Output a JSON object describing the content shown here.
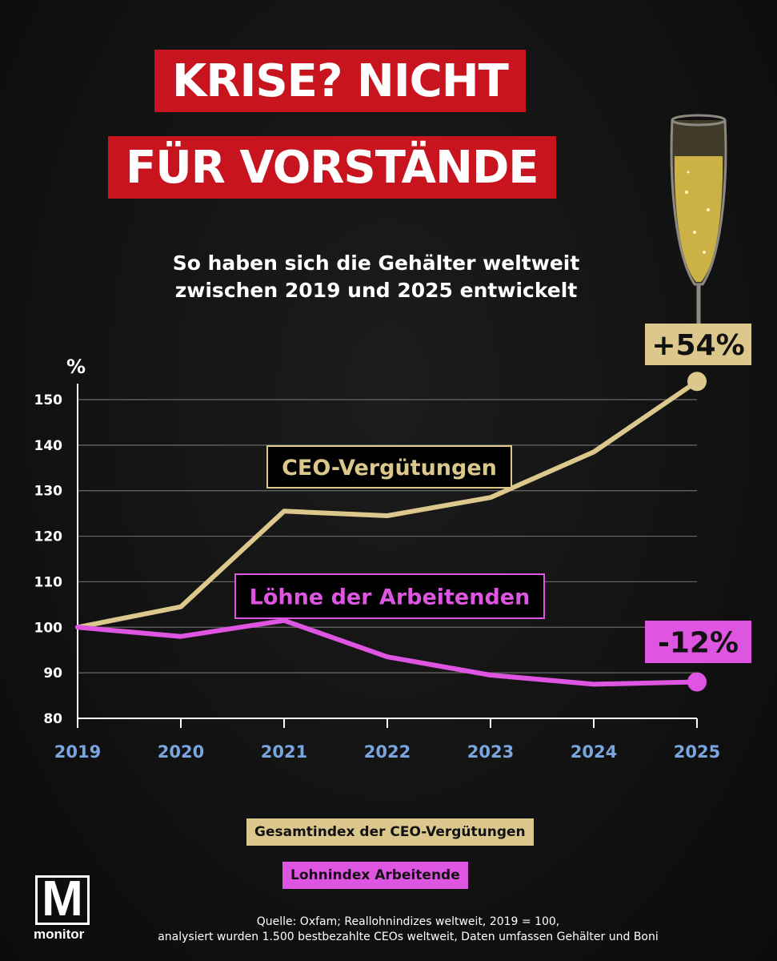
{
  "title": {
    "line1": "KRISE? NICHT",
    "line2": "FÜR VORSTÄNDE"
  },
  "subtitle": {
    "line1": "So haben sich die Gehälter weltweit",
    "line2": "zwischen 2019 und 2025 entwickelt"
  },
  "chart_data": {
    "type": "line",
    "ylabel": "%",
    "ylim": [
      80,
      155
    ],
    "yticks": [
      80,
      90,
      100,
      110,
      120,
      130,
      140,
      150
    ],
    "x": [
      "2019",
      "2020",
      "2021",
      "2022",
      "2023",
      "2024",
      "2025"
    ],
    "grid": true,
    "series": [
      {
        "name": "CEO-Vergütungen",
        "color": "#dcc88c",
        "values": [
          100,
          104.5,
          125.5,
          124.5,
          128.5,
          138.5,
          154
        ],
        "end_label": "+54%"
      },
      {
        "name": "Löhne der Arbeitenden",
        "color": "#dd55e0",
        "values": [
          100,
          98,
          101.5,
          93.5,
          89.5,
          87.5,
          88
        ],
        "end_label": "-12%"
      }
    ],
    "legend": [
      {
        "label": "Gesamtindex der CEO-Vergütungen",
        "color": "#dcc88c"
      },
      {
        "label": "Lohnindex Arbeitende",
        "color": "#dd55e0"
      }
    ]
  },
  "source": {
    "line1": "Quelle: Oxfam; Reallohnindizes weltweit, 2019 = 100,",
    "line2": "analysiert wurden 1.500 bestbezahlte CEOs weltweit, Daten umfassen Gehälter und Boni"
  },
  "logo": {
    "letter": "M",
    "text": "monitor"
  },
  "colors": {
    "title_bg": "#c8141e",
    "year_label": "#7aa6e0",
    "ceo": "#dcc88c",
    "workers": "#dd55e0"
  },
  "icons": [
    "champagne-glass-icon"
  ]
}
